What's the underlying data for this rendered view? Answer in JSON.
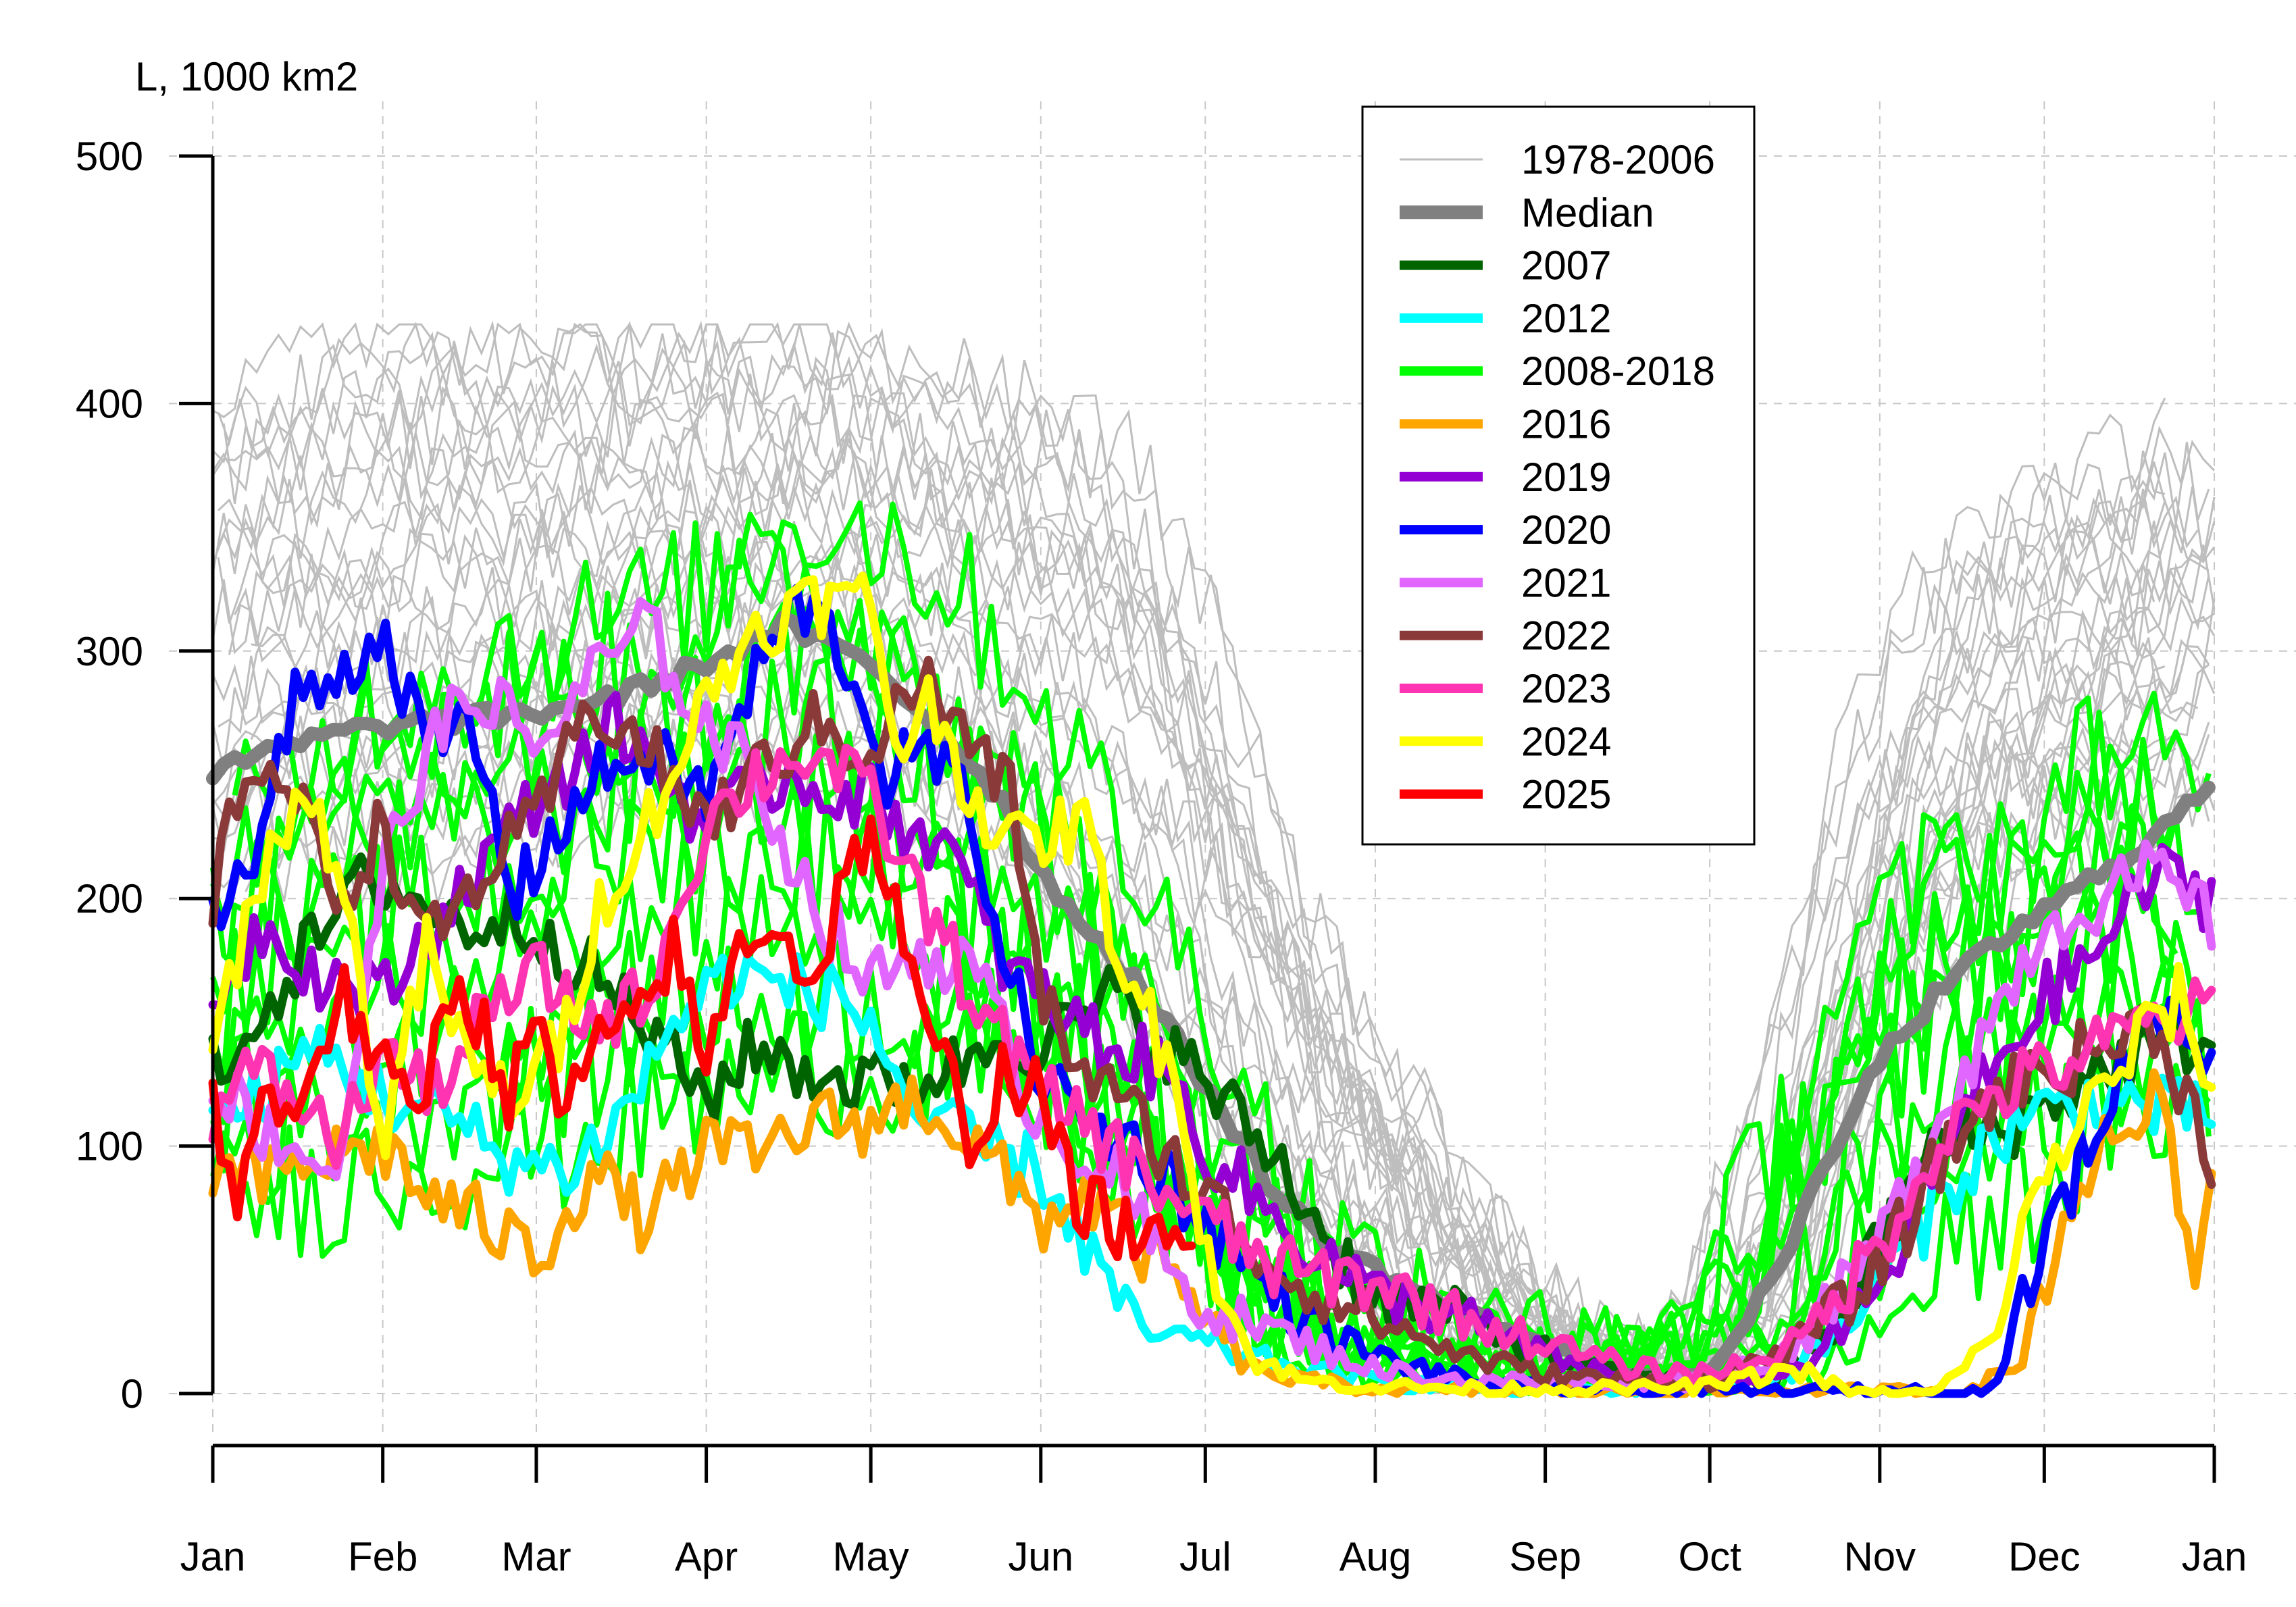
{
  "chart_data": {
    "type": "line",
    "ylabel": "L, 1000 km2",
    "xlabel": "",
    "ylim": [
      0,
      500
    ],
    "yticks": [
      0,
      100,
      200,
      300,
      400,
      500
    ],
    "xlim": [
      1,
      366
    ],
    "x_tick_labels": [
      "Jan",
      "Feb",
      "Mar",
      "Apr",
      "May",
      "Jun",
      "Jul",
      "Aug",
      "Sep",
      "Oct",
      "Nov",
      "Dec",
      "Jan"
    ],
    "x_tick_days": [
      1,
      32,
      60,
      91,
      121,
      152,
      182,
      213,
      244,
      274,
      305,
      335,
      366
    ],
    "grid": true,
    "legend_position": "top-right",
    "series": [
      {
        "name": "1978-2006",
        "color": "#bebebe",
        "style": "thin",
        "envelope": {
          "x": [
            1,
            15,
            32,
            45,
            60,
            75,
            91,
            105,
            121,
            135,
            152,
            165,
            182,
            195,
            213,
            228,
            244,
            259,
            274,
            290,
            305,
            320,
            335,
            350,
            366
          ],
          "low": [
            200,
            210,
            200,
            215,
            220,
            235,
            240,
            245,
            240,
            220,
            190,
            160,
            110,
            70,
            35,
            15,
            8,
            5,
            5,
            40,
            150,
            190,
            210,
            225,
            240
          ],
          "high": [
            400,
            410,
            432,
            432,
            432,
            432,
            432,
            432,
            430,
            420,
            410,
            400,
            340,
            230,
            150,
            90,
            40,
            20,
            25,
            110,
            250,
            330,
            360,
            375,
            390
          ]
        }
      },
      {
        "name": "Median",
        "color": "#808080",
        "style": "thick",
        "x": [
          1,
          10,
          20,
          32,
          45,
          60,
          75,
          91,
          105,
          121,
          135,
          145,
          152,
          160,
          170,
          182,
          195,
          205,
          213,
          222,
          230,
          244,
          255,
          265,
          274,
          285,
          295,
          305,
          315,
          325,
          335,
          345,
          355,
          366
        ],
        "y": [
          250,
          258,
          265,
          270,
          272,
          275,
          282,
          295,
          310,
          295,
          265,
          240,
          210,
          190,
          165,
          125,
          80,
          60,
          50,
          40,
          32,
          20,
          10,
          6,
          7,
          45,
          90,
          135,
          160,
          180,
          195,
          210,
          225,
          247
        ]
      },
      {
        "name": "2007",
        "color": "#006400",
        "style": "thick",
        "x": [
          1,
          15,
          30,
          45,
          60,
          75,
          91,
          100,
          110,
          121,
          135,
          145,
          152,
          165,
          180,
          195,
          205,
          213,
          225,
          240,
          255,
          270,
          285,
          295,
          305,
          315,
          330,
          345,
          355,
          366
        ],
        "y": [
          130,
          170,
          210,
          190,
          190,
          160,
          120,
          140,
          130,
          125,
          130,
          145,
          140,
          160,
          130,
          95,
          60,
          40,
          35,
          20,
          8,
          4,
          5,
          20,
          60,
          100,
          110,
          130,
          140,
          145
        ]
      },
      {
        "name": "2012",
        "color": "#00ffff",
        "style": "thick",
        "x": [
          1,
          10,
          20,
          32,
          45,
          55,
          65,
          75,
          85,
          95,
          105,
          115,
          121,
          130,
          140,
          152,
          160,
          170,
          182,
          195,
          213,
          230,
          244,
          260,
          274,
          290,
          300,
          310,
          320,
          330,
          345,
          355,
          366
        ],
        "y": [
          110,
          120,
          140,
          120,
          110,
          95,
          90,
          110,
          150,
          170,
          165,
          160,
          150,
          110,
          100,
          90,
          60,
          25,
          20,
          12,
          5,
          2,
          1,
          1,
          2,
          10,
          30,
          60,
          90,
          110,
          120,
          115,
          110
        ]
      },
      {
        "name": "2016",
        "color": "#ffa500",
        "style": "thick",
        "x": [
          1,
          10,
          20,
          32,
          40,
          50,
          60,
          70,
          80,
          91,
          100,
          110,
          121,
          130,
          140,
          152,
          160,
          170,
          182,
          190,
          200,
          213,
          230,
          244,
          260,
          274,
          290,
          305,
          320,
          330,
          340,
          350,
          358,
          362,
          366
        ],
        "y": [
          90,
          85,
          95,
          100,
          80,
          70,
          55,
          90,
          70,
          100,
          95,
          110,
          110,
          120,
          100,
          70,
          80,
          60,
          30,
          10,
          5,
          2,
          1,
          1,
          1,
          1,
          1,
          1,
          1,
          10,
          80,
          110,
          120,
          30,
          100
        ]
      },
      {
        "name": "2019",
        "color": "#9400d3",
        "style": "thick",
        "x": [
          1,
          10,
          20,
          32,
          45,
          60,
          75,
          91,
          105,
          121,
          135,
          145,
          152,
          165,
          175,
          182,
          195,
          213,
          230,
          244,
          260,
          274,
          290,
          305,
          315,
          325,
          335,
          345,
          355,
          366
        ],
        "y": [
          160,
          190,
          170,
          160,
          200,
          240,
          270,
          230,
          250,
          240,
          220,
          175,
          160,
          140,
          130,
          100,
          70,
          40,
          30,
          15,
          5,
          3,
          10,
          40,
          90,
          130,
          160,
          180,
          210,
          200
        ]
      },
      {
        "name": "2020",
        "color": "#0000ff",
        "style": "thick",
        "x": [
          1,
          8,
          16,
          24,
          32,
          40,
          48,
          56,
          64,
          72,
          80,
          91,
          100,
          108,
          116,
          124,
          132,
          140,
          146,
          152,
          160,
          170,
          182,
          190,
          200,
          213,
          230,
          244,
          260,
          274,
          290,
          305,
          315,
          325,
          335,
          345,
          355,
          366
        ],
        "y": [
          200,
          210,
          280,
          290,
          310,
          260,
          270,
          200,
          230,
          250,
          260,
          240,
          290,
          320,
          300,
          250,
          260,
          230,
          170,
          130,
          110,
          100,
          70,
          50,
          30,
          15,
          5,
          2,
          1,
          1,
          1,
          1,
          1,
          1,
          60,
          110,
          160,
          135
        ]
      },
      {
        "name": "2021",
        "color": "#e066ff",
        "style": "thick",
        "x": [
          1,
          8,
          16,
          24,
          32,
          40,
          50,
          60,
          70,
          80,
          91,
          100,
          110,
          121,
          130,
          140,
          152,
          165,
          175,
          182,
          195,
          213,
          230,
          244,
          260,
          274,
          290,
          305,
          315,
          325,
          335,
          345,
          355,
          366
        ],
        "y": [
          130,
          110,
          100,
          90,
          210,
          260,
          285,
          260,
          290,
          310,
          270,
          250,
          200,
          165,
          180,
          170,
          110,
          90,
          50,
          35,
          25,
          10,
          5,
          5,
          5,
          5,
          20,
          60,
          110,
          150,
          190,
          200,
          210,
          190
        ]
      },
      {
        "name": "2022",
        "color": "#8b3a3a",
        "style": "thick",
        "x": [
          1,
          8,
          16,
          24,
          32,
          40,
          50,
          60,
          70,
          80,
          91,
          100,
          110,
          121,
          130,
          140,
          147,
          152,
          160,
          170,
          182,
          195,
          213,
          230,
          244,
          260,
          274,
          290,
          305,
          315,
          325,
          335,
          345,
          355,
          366
        ],
        "y": [
          200,
          260,
          240,
          200,
          230,
          180,
          210,
          230,
          280,
          260,
          230,
          250,
          270,
          260,
          290,
          260,
          240,
          160,
          130,
          110,
          80,
          50,
          30,
          15,
          8,
          5,
          5,
          20,
          50,
          90,
          120,
          130,
          140,
          150,
          95
        ]
      },
      {
        "name": "2023",
        "color": "#ff34b3",
        "style": "thick",
        "x": [
          1,
          8,
          16,
          24,
          32,
          40,
          50,
          60,
          70,
          80,
          91,
          100,
          110,
          121,
          130,
          140,
          152,
          160,
          170,
          182,
          195,
          213,
          230,
          244,
          260,
          274,
          290,
          305,
          315,
          325,
          335,
          345,
          355,
          366
        ],
        "y": [
          110,
          130,
          120,
          100,
          140,
          120,
          150,
          170,
          150,
          160,
          230,
          250,
          260,
          240,
          200,
          160,
          120,
          110,
          90,
          70,
          50,
          45,
          30,
          20,
          10,
          8,
          20,
          60,
          100,
          120,
          130,
          140,
          150,
          155
        ]
      },
      {
        "name": "2024",
        "color": "#ffff00",
        "style": "thick",
        "x": [
          1,
          8,
          16,
          24,
          32,
          40,
          48,
          56,
          64,
          72,
          80,
          91,
          100,
          110,
          121,
          126,
          132,
          140,
          148,
          152,
          160,
          166,
          172,
          178,
          182,
          190,
          200,
          213,
          230,
          244,
          260,
          274,
          290,
          300,
          305,
          315,
          325,
          335,
          345,
          355,
          360,
          366
        ],
        "y": [
          140,
          200,
          240,
          220,
          100,
          180,
          130,
          120,
          140,
          200,
          230,
          280,
          310,
          320,
          320,
          260,
          280,
          240,
          220,
          225,
          230,
          180,
          150,
          120,
          60,
          15,
          5,
          3,
          2,
          2,
          2,
          3,
          10,
          0,
          0,
          0,
          20,
          90,
          120,
          150,
          160,
          120
        ]
      },
      {
        "name": "2025",
        "color": "#ff0000",
        "style": "thick",
        "x": [
          1,
          5,
          10,
          15,
          20,
          25,
          32,
          38,
          45,
          50,
          55,
          60,
          65,
          70,
          75,
          80,
          85,
          91,
          95,
          100,
          105,
          110,
          115,
          121,
          126,
          130,
          135,
          140,
          145,
          152,
          158,
          165,
          172,
          180
        ],
        "y": [
          115,
          80,
          120,
          110,
          140,
          160,
          130,
          110,
          170,
          150,
          120,
          150,
          110,
          140,
          140,
          160,
          180,
          130,
          170,
          190,
          190,
          160,
          200,
          230,
          190,
          150,
          130,
          100,
          130,
          120,
          80,
          70,
          60,
          55
        ]
      }
    ],
    "legend": [
      {
        "label": "1978-2006",
        "color": "#bebebe",
        "width": "thin"
      },
      {
        "label": "Median",
        "color": "#808080",
        "width": "thick"
      },
      {
        "label": "2007",
        "color": "#006400",
        "width": "thick"
      },
      {
        "label": "2012",
        "color": "#00ffff",
        "width": "thick"
      },
      {
        "label": "2008-2018",
        "color": "#00ff00",
        "width": "thick"
      },
      {
        "label": "2016",
        "color": "#ffa500",
        "width": "thick"
      },
      {
        "label": "2019",
        "color": "#9400d3",
        "width": "thick"
      },
      {
        "label": "2020",
        "color": "#0000ff",
        "width": "thick"
      },
      {
        "label": "2021",
        "color": "#e066ff",
        "width": "thick"
      },
      {
        "label": "2022",
        "color": "#8b3a3a",
        "width": "thick"
      },
      {
        "label": "2023",
        "color": "#ff34b3",
        "width": "thick"
      },
      {
        "label": "2024",
        "color": "#ffff00",
        "width": "thick"
      },
      {
        "label": "2025",
        "color": "#ff0000",
        "width": "thick"
      }
    ],
    "group_2008_2018": {
      "name": "2008-2018",
      "color": "#00ff00",
      "x": [
        1,
        32,
        60,
        91,
        105,
        121,
        135,
        152,
        165,
        182,
        195,
        213,
        230,
        244,
        260,
        274,
        290,
        305,
        320,
        335,
        350,
        366
      ],
      "low": [
        70,
        80,
        90,
        110,
        120,
        120,
        120,
        100,
        80,
        40,
        15,
        3,
        2,
        1,
        1,
        1,
        5,
        30,
        60,
        90,
        110,
        100
      ],
      "high": [
        240,
        300,
        320,
        340,
        370,
        360,
        330,
        280,
        220,
        150,
        80,
        40,
        30,
        25,
        25,
        30,
        110,
        200,
        240,
        240,
        290,
        260
      ]
    }
  }
}
